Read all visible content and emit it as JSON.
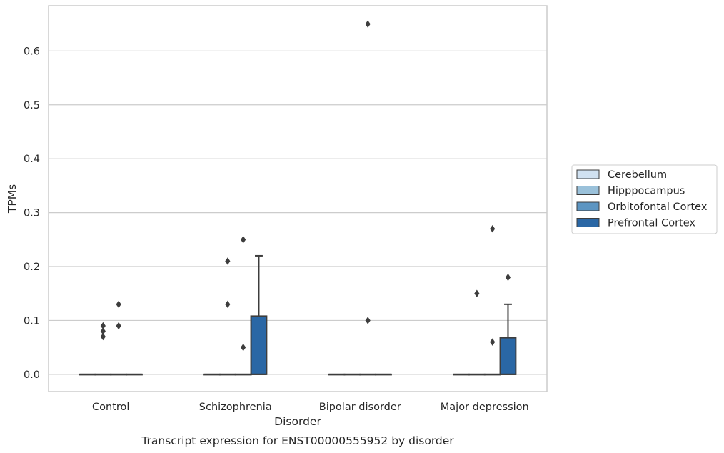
{
  "chart_data": {
    "type": "box",
    "caption": "Transcript expression for ENST00000555952 by disorder",
    "xlabel": "Disorder",
    "ylabel": "TPMs",
    "ylim": [
      -0.032,
      0.684
    ],
    "yticks": [
      "0.0",
      "0.1",
      "0.2",
      "0.3",
      "0.4",
      "0.5",
      "0.6"
    ],
    "ytick_values": [
      0,
      0.1,
      0.2,
      0.3,
      0.4,
      0.5,
      0.6
    ],
    "grid": true,
    "legend_position": "right",
    "categories": [
      "Control",
      "Schizophrenia",
      "Bipolar disorder",
      "Major depression"
    ],
    "series": [
      {
        "name": "Cerebellum",
        "color": "#d0e1f1",
        "boxes": [
          {
            "category": "Control",
            "q1": 0,
            "median": 0,
            "q3": 0,
            "whisker_low": 0,
            "whisker_high": 0,
            "outliers": []
          },
          {
            "category": "Schizophrenia",
            "q1": 0,
            "median": 0,
            "q3": 0,
            "whisker_low": 0,
            "whisker_high": 0,
            "outliers": []
          },
          {
            "category": "Bipolar disorder",
            "q1": 0,
            "median": 0,
            "q3": 0,
            "whisker_low": 0,
            "whisker_high": 0,
            "outliers": []
          },
          {
            "category": "Major depression",
            "q1": 0,
            "median": 0,
            "q3": 0,
            "whisker_low": 0,
            "whisker_high": 0,
            "outliers": []
          }
        ]
      },
      {
        "name": "Hipppocampus",
        "color": "#9ac1da",
        "boxes": [
          {
            "category": "Control",
            "q1": 0,
            "median": 0,
            "q3": 0,
            "whisker_low": 0,
            "whisker_high": 0,
            "outliers": [
              0.07,
              0.08,
              0.09
            ]
          },
          {
            "category": "Schizophrenia",
            "q1": 0,
            "median": 0,
            "q3": 0,
            "whisker_low": 0,
            "whisker_high": 0,
            "outliers": [
              0.13,
              0.21
            ]
          },
          {
            "category": "Bipolar disorder",
            "q1": 0,
            "median": 0,
            "q3": 0,
            "whisker_low": 0,
            "whisker_high": 0,
            "outliers": []
          },
          {
            "category": "Major depression",
            "q1": 0,
            "median": 0,
            "q3": 0,
            "whisker_low": 0,
            "whisker_high": 0,
            "outliers": [
              0.15
            ]
          }
        ]
      },
      {
        "name": "Orbitofontal Cortex",
        "color": "#5c95c2",
        "boxes": [
          {
            "category": "Control",
            "q1": 0,
            "median": 0,
            "q3": 0,
            "whisker_low": 0,
            "whisker_high": 0,
            "outliers": [
              0.09,
              0.13
            ]
          },
          {
            "category": "Schizophrenia",
            "q1": 0,
            "median": 0,
            "q3": 0,
            "whisker_low": 0,
            "whisker_high": 0,
            "outliers": [
              0.05,
              0.25
            ]
          },
          {
            "category": "Bipolar disorder",
            "q1": 0,
            "median": 0,
            "q3": 0,
            "whisker_low": 0,
            "whisker_high": 0,
            "outliers": [
              0.1,
              0.65
            ]
          },
          {
            "category": "Major depression",
            "q1": 0,
            "median": 0,
            "q3": 0,
            "whisker_low": 0,
            "whisker_high": 0,
            "outliers": [
              0.06,
              0.27
            ]
          }
        ]
      },
      {
        "name": "Prefrontal Cortex",
        "color": "#2a67a5",
        "boxes": [
          {
            "category": "Control",
            "q1": 0,
            "median": 0,
            "q3": 0,
            "whisker_low": 0,
            "whisker_high": 0,
            "outliers": []
          },
          {
            "category": "Schizophrenia",
            "q1": 0,
            "median": 0,
            "q3": 0.108,
            "whisker_low": 0,
            "whisker_high": 0.22,
            "outliers": []
          },
          {
            "category": "Bipolar disorder",
            "q1": 0,
            "median": 0,
            "q3": 0,
            "whisker_low": 0,
            "whisker_high": 0,
            "outliers": []
          },
          {
            "category": "Major depression",
            "q1": 0,
            "median": 0,
            "q3": 0.068,
            "whisker_low": 0,
            "whisker_high": 0.13,
            "outliers": [
              0.18
            ]
          }
        ]
      }
    ]
  }
}
